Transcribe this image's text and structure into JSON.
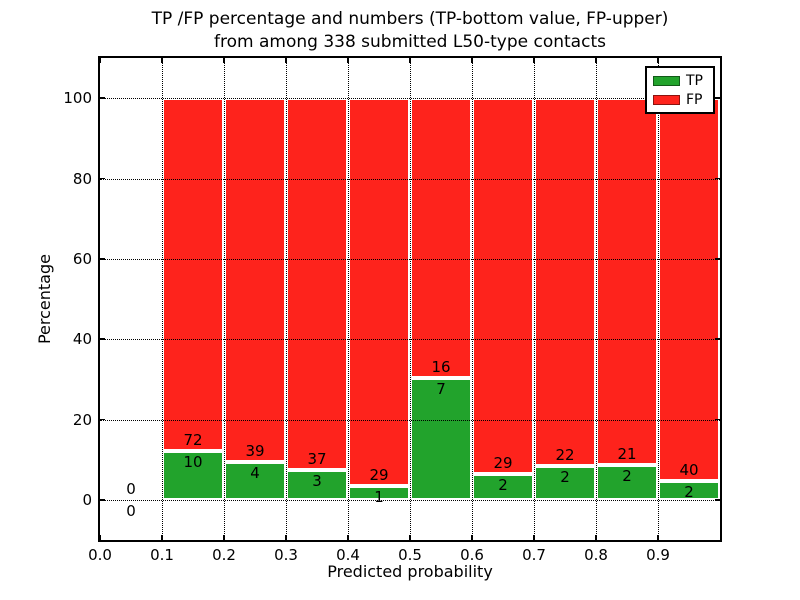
{
  "title": {
    "line1": "TP /FP percentage and numbers (TP-bottom value, FP-upper)",
    "line2": "from among 338 submitted L50-type contacts"
  },
  "axes": {
    "xlabel": "Predicted probability",
    "ylabel": "Percentage",
    "ylim": [
      -10,
      110
    ],
    "xlim": [
      0,
      1
    ],
    "yticks": [
      0,
      20,
      40,
      60,
      80,
      100
    ],
    "ytick_labels": [
      "0",
      "20",
      "40",
      "60",
      "80",
      "100"
    ],
    "xticks": [
      0,
      0.1,
      0.2,
      0.3,
      0.4,
      0.5,
      0.6,
      0.7,
      0.8,
      0.9
    ],
    "xtick_labels": [
      "0.0",
      "0.1",
      "0.2",
      "0.3",
      "0.4",
      "0.5",
      "0.6",
      "0.7",
      "0.8",
      "0.9"
    ],
    "grid_style": "dotted"
  },
  "legend": {
    "position": "upper right",
    "items": [
      {
        "label": "TP",
        "color": "#22a32c"
      },
      {
        "label": "FP",
        "color": "#fe231c"
      }
    ]
  },
  "chart_data": {
    "type": "bar",
    "stacked": true,
    "normalized_to_percent": true,
    "title": "TP /FP percentage and numbers (TP-bottom value, FP-upper) from among 338 submitted L50-type contacts",
    "xlabel": "Predicted probability",
    "ylabel": "Percentage",
    "ylim": [
      -10,
      110
    ],
    "xlim": [
      0,
      1
    ],
    "legend_position": "upper right",
    "grid": "dotted",
    "total_submitted": 338,
    "bin_width": 0.1,
    "bins": [
      {
        "x0": 0.0,
        "x1": 0.1,
        "tp_count": 0,
        "fp_count": 0,
        "tp_percent": 0.0,
        "fp_percent": 0.0
      },
      {
        "x0": 0.1,
        "x1": 0.2,
        "tp_count": 10,
        "fp_count": 72,
        "tp_percent": 12.2,
        "fp_percent": 87.8
      },
      {
        "x0": 0.2,
        "x1": 0.3,
        "tp_count": 4,
        "fp_count": 39,
        "tp_percent": 9.3,
        "fp_percent": 90.7
      },
      {
        "x0": 0.3,
        "x1": 0.4,
        "tp_count": 3,
        "fp_count": 37,
        "tp_percent": 7.5,
        "fp_percent": 92.5
      },
      {
        "x0": 0.4,
        "x1": 0.5,
        "tp_count": 1,
        "fp_count": 29,
        "tp_percent": 3.3,
        "fp_percent": 96.7
      },
      {
        "x0": 0.5,
        "x1": 0.6,
        "tp_count": 7,
        "fp_count": 16,
        "tp_percent": 30.4,
        "fp_percent": 69.6
      },
      {
        "x0": 0.6,
        "x1": 0.7,
        "tp_count": 2,
        "fp_count": 29,
        "tp_percent": 6.5,
        "fp_percent": 93.5
      },
      {
        "x0": 0.7,
        "x1": 0.8,
        "tp_count": 2,
        "fp_count": 22,
        "tp_percent": 8.3,
        "fp_percent": 91.7
      },
      {
        "x0": 0.8,
        "x1": 0.9,
        "tp_count": 2,
        "fp_count": 21,
        "tp_percent": 8.7,
        "fp_percent": 91.3
      },
      {
        "x0": 0.9,
        "x1": 1.0,
        "tp_count": 2,
        "fp_count": 40,
        "tp_percent": 4.8,
        "fp_percent": 95.2
      }
    ],
    "series": [
      {
        "name": "TP",
        "color": "#22a32c",
        "counts": [
          0,
          10,
          4,
          3,
          1,
          7,
          2,
          2,
          2,
          2
        ]
      },
      {
        "name": "FP",
        "color": "#fe231c",
        "counts": [
          0,
          72,
          39,
          37,
          29,
          16,
          29,
          22,
          21,
          40
        ]
      }
    ]
  }
}
